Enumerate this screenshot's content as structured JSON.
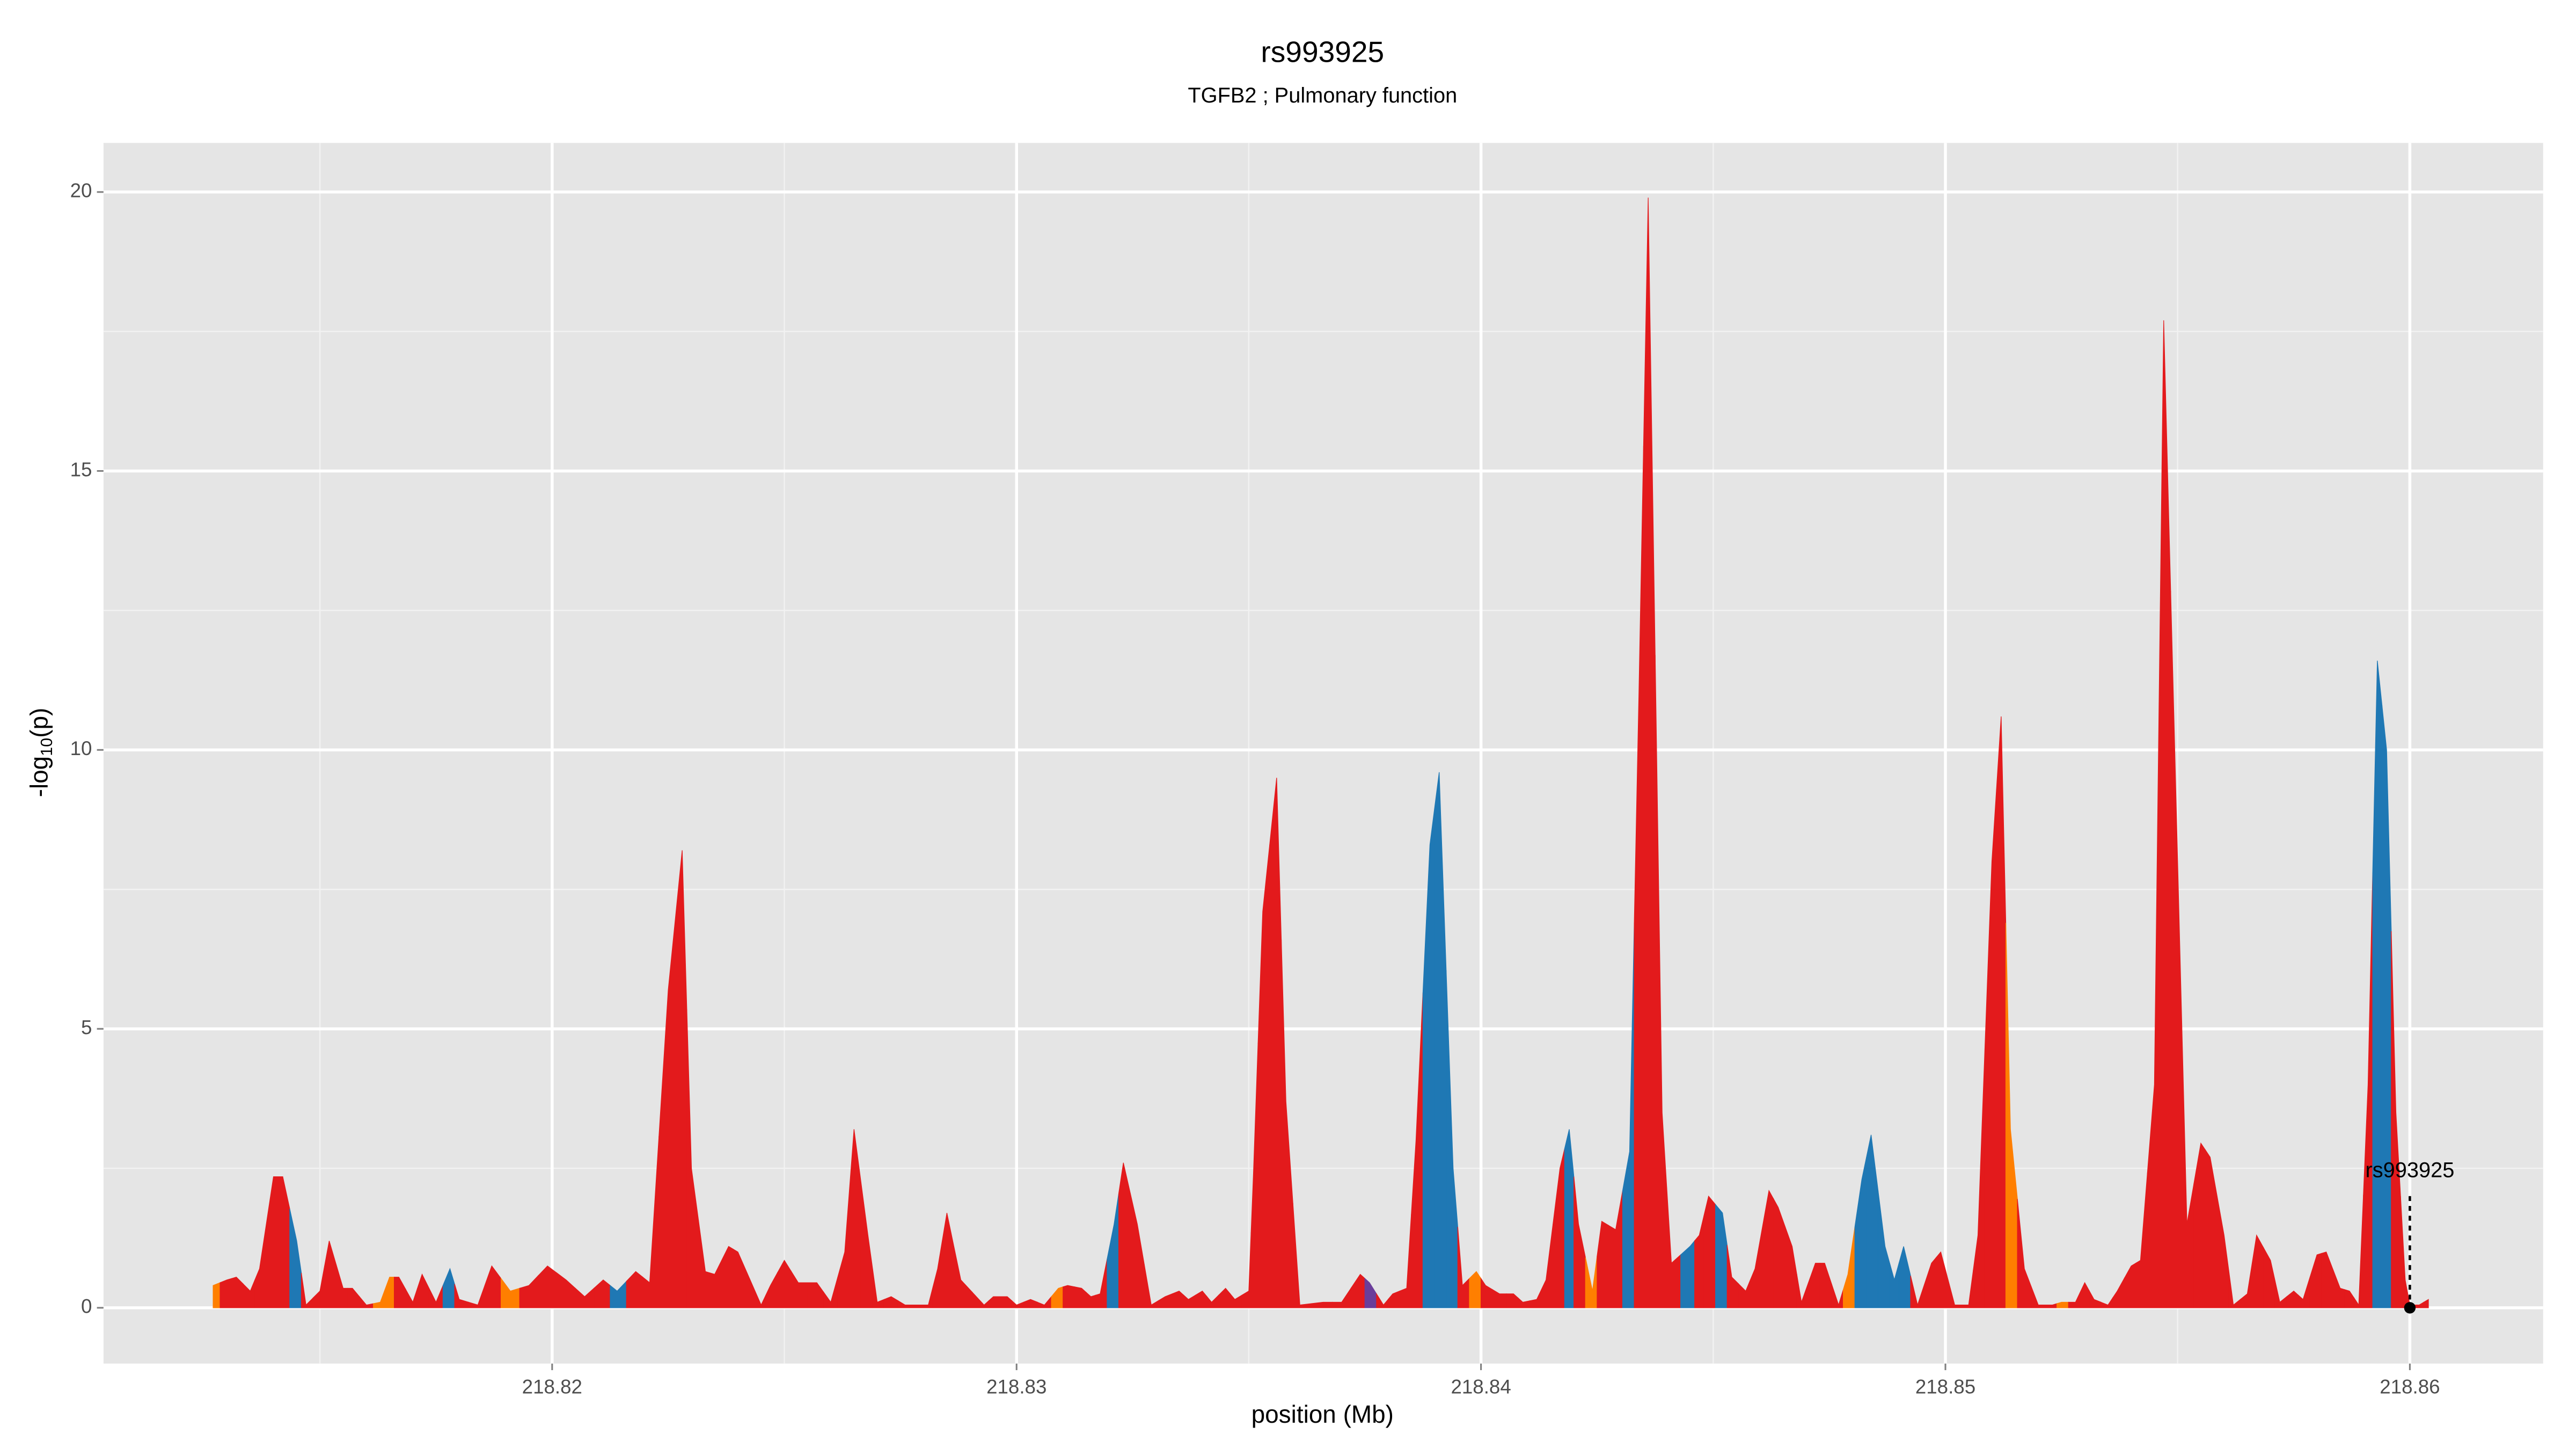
{
  "chart_data": {
    "type": "area",
    "title": "rs993925",
    "subtitle": "TGFB2 ; Pulmonary function",
    "xlabel": "position (Mb)",
    "ylabel": [
      "-log",
      "10",
      "(p)"
    ],
    "xlim": [
      218.81034,
      218.86287
    ],
    "ylim": [
      -1.0,
      20.88
    ],
    "xticks": [
      218.82,
      218.83,
      218.84,
      218.85,
      218.86
    ],
    "x_minor_ticks": [
      218.815,
      218.825,
      218.835,
      218.845,
      218.855
    ],
    "yticks": [
      0,
      5,
      10,
      15,
      20
    ],
    "y_minor_ticks": [
      2.5,
      7.5,
      12.5,
      17.5
    ],
    "grid": true,
    "series": [
      {
        "x": [
          218.8127,
          218.813,
          218.8132,
          218.8135,
          218.8137,
          218.814,
          218.8142,
          218.8145,
          218.8147,
          218.815,
          218.8152,
          218.8155,
          218.8157,
          218.816,
          218.8163,
          218.8165,
          218.8167,
          218.817,
          218.8172,
          218.8175,
          218.8178,
          218.818,
          218.8184,
          218.8187,
          218.8191,
          218.8195,
          218.8199,
          218.8203,
          218.8207,
          218.8211,
          218.8214,
          218.8218,
          218.8221,
          218.8225,
          218.8228,
          218.823,
          218.8233,
          218.8235,
          218.8238,
          218.824,
          218.8245,
          218.8247,
          218.825,
          218.8253,
          218.8257,
          218.826,
          218.8263,
          218.8265,
          218.8268,
          218.827,
          218.8273,
          218.8276,
          218.8281,
          218.8283,
          218.8285,
          218.8288,
          218.8293,
          218.8295,
          218.8298,
          218.83,
          218.8303,
          218.8306,
          218.8309,
          218.8311,
          218.8314,
          218.8316,
          218.8318,
          218.8321,
          218.8323,
          218.8326,
          218.8329,
          218.8332,
          218.8335,
          218.8337,
          218.834,
          218.8342,
          218.8345,
          218.8347,
          218.835,
          218.8351,
          218.8353,
          218.8356,
          218.8358,
          218.8361,
          218.8366,
          218.837,
          218.8374,
          218.8376,
          218.8379,
          218.8381,
          218.8384,
          218.8386,
          218.8389,
          218.8391,
          218.8394,
          218.8396,
          218.8399,
          218.8401,
          218.8404,
          218.8407,
          218.8409,
          218.8412,
          218.8414,
          218.8417,
          218.8419,
          218.8421,
          218.8424,
          218.8426,
          218.8429,
          218.8432,
          218.8434,
          218.8436,
          218.8439,
          218.8441,
          218.8445,
          218.8447,
          218.8449,
          218.8452,
          218.8454,
          218.8457,
          218.8459,
          218.8462,
          218.8464,
          218.8467,
          218.8469,
          218.8472,
          218.8474,
          218.8477,
          218.8479,
          218.8482,
          218.8484,
          218.8487,
          218.8489,
          218.8491,
          218.8494,
          218.8497,
          218.8499,
          218.8502,
          218.8505,
          218.8507,
          218.851,
          218.8512,
          218.8514,
          218.8517,
          218.852,
          218.8523,
          218.8525,
          218.8528,
          218.853,
          218.8532,
          218.8535,
          218.8537,
          218.854,
          218.8542,
          218.8545,
          218.8547,
          218.855,
          218.8552,
          218.8555,
          218.8557,
          218.856,
          218.8562,
          218.8565,
          218.8567,
          218.857,
          218.8572,
          218.8575,
          218.8577,
          218.858,
          218.8582,
          218.8585,
          218.8587,
          218.8589,
          218.8591,
          218.8593,
          218.8595,
          218.8597,
          218.8599,
          218.86,
          218.8602,
          218.8604
        ],
        "values": [
          0.4,
          0.5,
          0.55,
          0.3,
          0.7,
          2.35,
          2.35,
          1.2,
          0.05,
          0.3,
          1.2,
          0.35,
          0.35,
          0.05,
          0.1,
          0.55,
          0.55,
          0.1,
          0.6,
          0.1,
          0.7,
          0.15,
          0.05,
          0.75,
          0.3,
          0.4,
          0.75,
          0.5,
          0.2,
          0.5,
          0.3,
          0.65,
          0.45,
          5.7,
          8.2,
          2.5,
          0.65,
          0.6,
          1.1,
          1.0,
          0.05,
          0.4,
          0.85,
          0.45,
          0.45,
          0.1,
          1.0,
          3.2,
          1.3,
          0.1,
          0.2,
          0.05,
          0.05,
          0.7,
          1.7,
          0.5,
          0.05,
          0.2,
          0.2,
          0.05,
          0.15,
          0.05,
          0.35,
          0.4,
          0.35,
          0.2,
          0.25,
          1.5,
          2.6,
          1.5,
          0.05,
          0.2,
          0.3,
          0.15,
          0.3,
          0.1,
          0.35,
          0.15,
          0.3,
          2.4,
          7.1,
          9.5,
          3.7,
          0.05,
          0.1,
          0.1,
          0.6,
          0.45,
          0.05,
          0.25,
          0.35,
          3.0,
          8.3,
          9.6,
          2.5,
          0.4,
          0.65,
          0.4,
          0.25,
          0.25,
          0.1,
          0.15,
          0.5,
          2.5,
          3.2,
          1.5,
          0.3,
          1.55,
          1.4,
          2.8,
          11,
          19.9,
          3.5,
          0.8,
          1.1,
          1.3,
          2.0,
          1.7,
          0.55,
          0.3,
          0.7,
          2.1,
          1.8,
          1.1,
          0.1,
          0.8,
          0.8,
          0.05,
          0.6,
          2.3,
          3.1,
          1.1,
          0.5,
          1.1,
          0.05,
          0.8,
          1.0,
          0.05,
          0.05,
          1.3,
          8.0,
          10.6,
          3.2,
          0.7,
          0.05,
          0.05,
          0.1,
          0.1,
          0.45,
          0.15,
          0.05,
          0.3,
          0.75,
          0.85,
          4,
          17.7,
          8,
          1.5,
          2.95,
          2.7,
          1.3,
          0.05,
          0.25,
          1.3,
          0.85,
          0.1,
          0.3,
          0.15,
          0.95,
          1.0,
          0.35,
          0.3,
          0.05,
          4,
          11.6,
          10,
          3.5,
          0.5,
          0.05,
          0.05,
          0.15
        ],
        "colors": [
          "#ff7f00",
          "#e31a1c",
          "#e31a1c",
          "#e31a1c",
          "#e31a1c",
          "#e31a1c",
          "#e31a1c",
          "#1f78b4",
          "#e31a1c",
          "#e31a1c",
          "#e31a1c",
          "#e31a1c",
          "#e31a1c",
          "#e31a1c",
          "#ff7f00",
          "#ff7f00",
          "#e31a1c",
          "#e31a1c",
          "#e31a1c",
          "#e31a1c",
          "#1f78b4",
          "#e31a1c",
          "#e31a1c",
          "#e31a1c",
          "#ff7f00",
          "#e31a1c",
          "#e31a1c",
          "#e31a1c",
          "#e31a1c",
          "#e31a1c",
          "#1f78b4",
          "#e31a1c",
          "#e31a1c",
          "#e31a1c",
          "#e31a1c",
          "#e31a1c",
          "#e31a1c",
          "#e31a1c",
          "#e31a1c",
          "#e31a1c",
          "#e31a1c",
          "#e31a1c",
          "#e31a1c",
          "#e31a1c",
          "#e31a1c",
          "#e31a1c",
          "#e31a1c",
          "#e31a1c",
          "#e31a1c",
          "#e31a1c",
          "#e31a1c",
          "#e31a1c",
          "#e31a1c",
          "#e31a1c",
          "#e31a1c",
          "#e31a1c",
          "#e31a1c",
          "#e31a1c",
          "#e31a1c",
          "#e31a1c",
          "#e31a1c",
          "#e31a1c",
          "#ff7f00",
          "#e31a1c",
          "#e31a1c",
          "#e31a1c",
          "#e31a1c",
          "#1f78b4",
          "#e31a1c",
          "#e31a1c",
          "#e31a1c",
          "#e31a1c",
          "#e31a1c",
          "#e31a1c",
          "#e31a1c",
          "#e31a1c",
          "#e31a1c",
          "#e31a1c",
          "#e31a1c",
          "#e31a1c",
          "#e31a1c",
          "#e31a1c",
          "#e31a1c",
          "#e31a1c",
          "#e31a1c",
          "#e31a1c",
          "#e31a1c",
          "#6a3d9a",
          "#e31a1c",
          "#e31a1c",
          "#e31a1c",
          "#e31a1c",
          "#1f78b4",
          "#1f78b4",
          "#1f78b4",
          "#e31a1c",
          "#ff7f00",
          "#e31a1c",
          "#e31a1c",
          "#e31a1c",
          "#e31a1c",
          "#e31a1c",
          "#e31a1c",
          "#e31a1c",
          "#1f78b4",
          "#e31a1c",
          "#ff7f00",
          "#e31a1c",
          "#e31a1c",
          "#1f78b4",
          "#e31a1c",
          "#e31a1c",
          "#e31a1c",
          "#e31a1c",
          "#1f78b4",
          "#e31a1c",
          "#e31a1c",
          "#1f78b4",
          "#e31a1c",
          "#e31a1c",
          "#e31a1c",
          "#e31a1c",
          "#e31a1c",
          "#e31a1c",
          "#e31a1c",
          "#e31a1c",
          "#e31a1c",
          "#e31a1c",
          "#ff7f00",
          "#1f78b4",
          "#1f78b4",
          "#1f78b4",
          "#1f78b4",
          "#1f78b4",
          "#e31a1c",
          "#e31a1c",
          "#e31a1c",
          "#e31a1c",
          "#e31a1c",
          "#e31a1c",
          "#e31a1c",
          "#e31a1c",
          "#ff7f00",
          "#e31a1c",
          "#e31a1c",
          "#e31a1c",
          "#ff7f00",
          "#e31a1c",
          "#e31a1c",
          "#e31a1c",
          "#e31a1c",
          "#e31a1c",
          "#e31a1c",
          "#e31a1c",
          "#e31a1c",
          "#e31a1c",
          "#e31a1c",
          "#e31a1c",
          "#e31a1c",
          "#e31a1c",
          "#e31a1c",
          "#e31a1c",
          "#e31a1c",
          "#e31a1c",
          "#e31a1c",
          "#e31a1c",
          "#e31a1c",
          "#e31a1c",
          "#e31a1c",
          "#e31a1c",
          "#e31a1c",
          "#e31a1c",
          "#e31a1c",
          "#e31a1c",
          "#1f78b4",
          "#1f78b4",
          "#e31a1c",
          "#e31a1c",
          "#e31a1c",
          "#e31a1c",
          "#e31a1c"
        ]
      }
    ],
    "annotation": {
      "text": "rs993925",
      "x": 218.86,
      "y": 0
    }
  }
}
